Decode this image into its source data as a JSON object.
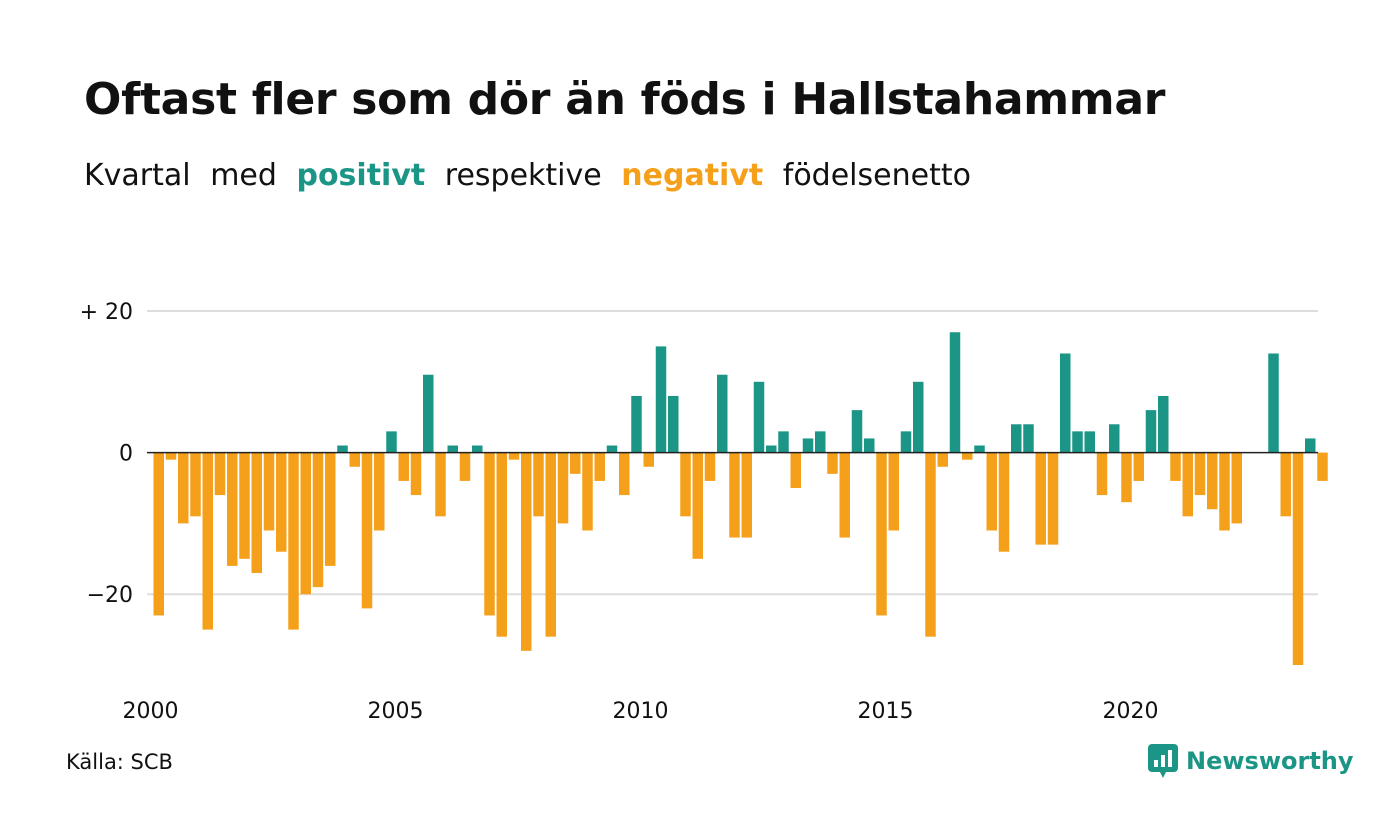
{
  "title": "Oftast fler som dör än föds i Hallstahammar",
  "subtitle": {
    "part1": "Kvartal",
    "part2": "med",
    "positive_word": "positivt",
    "part3": "respektive",
    "negative_word": "negativt",
    "part4": "födelsenetto"
  },
  "colors": {
    "positive": "#1b9585",
    "negative": "#f5a01a",
    "grid": "#dddddd",
    "zero_line": "#222222",
    "text": "#111111"
  },
  "source": "Källa: SCB",
  "brand": {
    "name": "Newsworthy",
    "icon": "newsworthy-logo-icon"
  },
  "chart_data": {
    "type": "bar",
    "title": "Oftast fler som dör än föds i Hallstahammar",
    "xlabel": "",
    "ylabel": "",
    "ylim": [
      -30,
      20
    ],
    "yticks": [
      {
        "value": 20,
        "label": "+ 20"
      },
      {
        "value": 0,
        "label": "0"
      },
      {
        "value": -20,
        "label": "−20"
      }
    ],
    "xticks": [
      {
        "value": "2000",
        "label": "2000"
      },
      {
        "value": "2005",
        "label": "2005"
      },
      {
        "value": "2010",
        "label": "2010"
      },
      {
        "value": "2015",
        "label": "2015"
      },
      {
        "value": "2020",
        "label": "2020"
      }
    ],
    "grid": true,
    "categories": [
      "2000 K1",
      "2000 K2",
      "2000 K3",
      "2000 K4",
      "2001 K1",
      "2001 K2",
      "2001 K3",
      "2001 K4",
      "2002 K1",
      "2002 K2",
      "2002 K3",
      "2002 K4",
      "2003 K1",
      "2003 K2",
      "2003 K3",
      "2003 K4",
      "2004 K1",
      "2004 K2",
      "2004 K3",
      "2004 K4",
      "2005 K1",
      "2005 K2",
      "2005 K3",
      "2005 K4",
      "2006 K1",
      "2006 K2",
      "2006 K3",
      "2006 K4",
      "2007 K1",
      "2007 K2",
      "2007 K3",
      "2007 K4",
      "2008 K1",
      "2008 K2",
      "2008 K3",
      "2008 K4",
      "2009 K1",
      "2009 K2",
      "2009 K3",
      "2009 K4",
      "2010 K1",
      "2010 K2",
      "2010 K3",
      "2010 K4",
      "2011 K1",
      "2011 K2",
      "2011 K3",
      "2011 K4",
      "2012 K1",
      "2012 K2",
      "2012 K3",
      "2012 K4",
      "2013 K1",
      "2013 K2",
      "2013 K3",
      "2013 K4",
      "2014 K1",
      "2014 K2",
      "2014 K3",
      "2014 K4",
      "2015 K1",
      "2015 K2",
      "2015 K3",
      "2015 K4",
      "2016 K1",
      "2016 K2",
      "2016 K3",
      "2016 K4",
      "2017 K1",
      "2017 K2",
      "2017 K3",
      "2017 K4",
      "2018 K1",
      "2018 K2",
      "2018 K3",
      "2018 K4",
      "2019 K1",
      "2019 K2",
      "2019 K3",
      "2019 K4",
      "2020 K1",
      "2020 K2",
      "2020 K3",
      "2020 K4",
      "2021 K1",
      "2021 K2",
      "2021 K3",
      "2021 K4",
      "2022 K1",
      "2022 K2",
      "2022 K3",
      "2022 K4",
      "2023 K1",
      "2023 K2",
      "2023 K3",
      "2023 K4"
    ],
    "values": [
      -23,
      -1,
      -10,
      -9,
      -25,
      -6,
      -16,
      -15,
      -17,
      -11,
      -14,
      -25,
      -20,
      -19,
      -16,
      1,
      -2,
      -22,
      -11,
      3,
      -4,
      -6,
      11,
      -9,
      1,
      -4,
      1,
      -23,
      -26,
      -1,
      -28,
      -9,
      -26,
      -10,
      -3,
      -11,
      -4,
      1,
      -6,
      8,
      -2,
      15,
      8,
      -9,
      -15,
      -4,
      11,
      -12,
      -12,
      10,
      1,
      3,
      -5,
      2,
      3,
      -3,
      -12,
      6,
      2,
      -23,
      -11,
      3,
      10,
      -26,
      -2,
      17,
      -1,
      1,
      -11,
      -14,
      4,
      4,
      -13,
      -13,
      14,
      3,
      3,
      -6,
      4,
      -7,
      -4,
      6,
      8,
      -4,
      -9,
      -6,
      -8,
      -11,
      -10,
      0,
      0,
      14,
      -9,
      -30,
      2,
      -4
    ]
  }
}
